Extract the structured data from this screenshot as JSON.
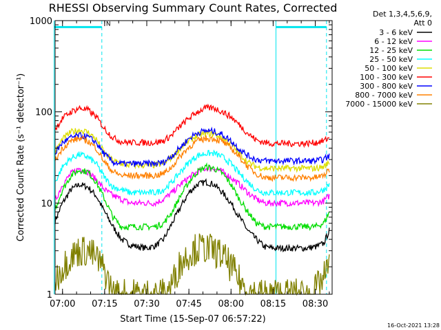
{
  "chart_data": {
    "type": "line",
    "title": "RHESSI Observing Summary Count Rates, Corrected",
    "xlabel": "Start Time (15-Sep-07 06:57:22)",
    "ylabel": "Corrected Count Rate (s⁻¹ detector⁻¹)",
    "yscale": "log",
    "ylim": [
      1,
      1000
    ],
    "xlim": [
      "06:57:22",
      "08:36:00"
    ],
    "x_ticks": [
      "07:00",
      "07:15",
      "07:30",
      "07:45",
      "08:00",
      "08:15",
      "08:30"
    ],
    "y_ticks": [
      "1",
      "10",
      "100",
      "1000"
    ],
    "x": [
      "06:57",
      "07:00",
      "07:03",
      "07:06",
      "07:09",
      "07:12",
      "07:15",
      "07:18",
      "07:21",
      "07:24",
      "07:27",
      "07:30",
      "07:33",
      "07:36",
      "07:39",
      "07:42",
      "07:45",
      "07:48",
      "07:51",
      "07:54",
      "07:57",
      "08:00",
      "08:03",
      "08:06",
      "08:09",
      "08:12",
      "08:15",
      "08:18",
      "08:21",
      "08:24",
      "08:27",
      "08:30",
      "08:33",
      "08:35"
    ],
    "legend_header": [
      "Det 1,3,4,5,6,9,",
      "Att 0"
    ],
    "legend_position": "right",
    "series": [
      {
        "name": "3 - 6 keV",
        "color": "#000000",
        "values": [
          6,
          10,
          14,
          16,
          15,
          12,
          8,
          5.5,
          4,
          3.5,
          3.3,
          3.2,
          3.4,
          4,
          6,
          9,
          13,
          16,
          17,
          16,
          13,
          10,
          7,
          5,
          4,
          3.3,
          3.2,
          3.2,
          3.2,
          3.2,
          3.2,
          3.3,
          3.6,
          5
        ]
      },
      {
        "name": "6 - 12 keV",
        "color": "#ff00ff",
        "values": [
          10,
          16,
          21,
          24,
          22,
          18,
          14,
          12,
          11,
          10,
          10,
          10,
          10,
          11,
          13,
          16,
          19,
          22,
          24,
          24,
          22,
          19,
          16,
          13,
          11,
          10,
          10,
          10,
          10,
          10,
          10,
          10,
          10.5,
          12
        ]
      },
      {
        "name": "12 - 25 keV",
        "color": "#00dd00",
        "values": [
          8,
          14,
          20,
          23,
          22,
          17,
          11,
          7,
          5.5,
          5.5,
          5.5,
          5.5,
          5.5,
          6,
          8,
          12,
          17,
          22,
          25,
          24,
          21,
          16,
          11,
          8,
          6,
          5.5,
          5.5,
          5.5,
          5.5,
          5.5,
          5.5,
          5.5,
          6,
          8
        ]
      },
      {
        "name": "25 - 50 keV",
        "color": "#00ffff",
        "values": [
          16,
          25,
          31,
          34,
          32,
          27,
          19,
          15,
          14,
          13,
          13,
          13,
          13,
          14,
          17,
          22,
          28,
          33,
          35,
          35,
          32,
          27,
          21,
          17,
          14,
          13,
          13,
          13,
          13,
          13,
          13,
          13,
          14,
          16
        ]
      },
      {
        "name": "50 - 100 keV",
        "color": "#dddd00",
        "values": [
          35,
          50,
          60,
          63,
          60,
          50,
          35,
          29,
          27,
          26,
          26,
          26,
          26,
          27,
          32,
          40,
          48,
          55,
          58,
          57,
          52,
          44,
          35,
          28,
          25,
          24,
          24,
          24,
          24,
          24,
          24,
          24,
          25,
          28
        ]
      },
      {
        "name": "100 - 300 keV",
        "color": "#ff0000",
        "values": [
          62,
          85,
          100,
          110,
          105,
          88,
          65,
          52,
          47,
          46,
          46,
          46,
          46,
          48,
          56,
          70,
          85,
          100,
          110,
          110,
          100,
          88,
          72,
          58,
          49,
          46,
          45,
          45,
          45,
          45,
          45,
          46,
          48,
          52
        ]
      },
      {
        "name": "300 - 800 keV",
        "color": "#0000ff",
        "values": [
          34,
          46,
          52,
          55,
          53,
          46,
          34,
          28,
          27,
          27,
          27,
          27,
          27,
          28,
          33,
          41,
          51,
          59,
          62,
          61,
          56,
          48,
          39,
          33,
          30,
          29,
          29,
          29,
          29,
          29,
          29,
          29,
          30,
          33
        ]
      },
      {
        "name": "800 - 7000 keV",
        "color": "#ff8000",
        "values": [
          28,
          40,
          48,
          51,
          48,
          40,
          28,
          22,
          20,
          20,
          20,
          20,
          20,
          21,
          25,
          33,
          41,
          48,
          51,
          51,
          47,
          40,
          32,
          25,
          21,
          19,
          19,
          19,
          19,
          19,
          19,
          19,
          20,
          23
        ]
      },
      {
        "name": "7000 - 15000 keV",
        "color": "#808000",
        "values": [
          1.3,
          2,
          2.6,
          3,
          3,
          2.5,
          1.8,
          1,
          1,
          1,
          1,
          1,
          1,
          1,
          1.3,
          2.2,
          2.8,
          3.2,
          3.2,
          3,
          2.6,
          2,
          1.4,
          1.1,
          1,
          1,
          1,
          1,
          1,
          1,
          1,
          1.1,
          1.5,
          2
        ]
      }
    ],
    "annotations": [
      {
        "type": "attenuator-bar",
        "color": "#00e5ee",
        "start": "06:57",
        "end": "07:14",
        "level": 850
      },
      {
        "type": "attenuator-bar",
        "color": "#00e5ee",
        "start": "08:16",
        "end": "08:34",
        "level": 850
      },
      {
        "type": "solid-vline",
        "color": "#00e5ee",
        "at": "06:57"
      },
      {
        "type": "dashed-vline",
        "color": "#00e5ee",
        "at": "07:14"
      },
      {
        "type": "solid-vline",
        "color": "#00e5ee",
        "at": "08:16"
      },
      {
        "type": "dashed-vline",
        "color": "#00e5ee",
        "at": "08:34"
      },
      {
        "type": "text",
        "color": "#00e5ee",
        "label": "N",
        "at": "07:15",
        "level": 850
      }
    ],
    "grid": false
  },
  "footer": {
    "stamp": "16-Oct-2021 13:28"
  }
}
